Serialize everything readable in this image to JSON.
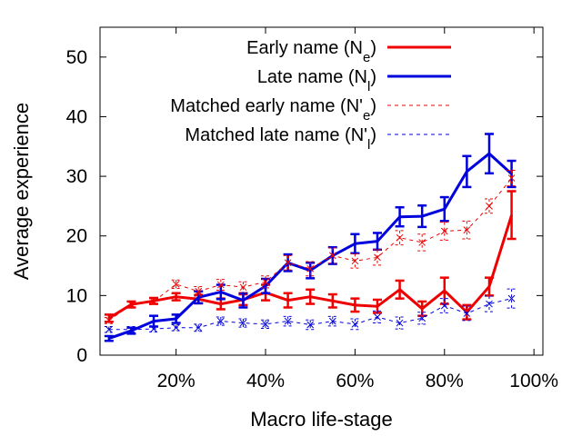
{
  "chart_data": {
    "type": "line",
    "title": "",
    "xlabel": "Macro life-stage",
    "ylabel": "Average experience",
    "xlim": [
      3,
      102
    ],
    "ylim": [
      0,
      55
    ],
    "xticks": [
      {
        "value": 20,
        "label": "20%"
      },
      {
        "value": 40,
        "label": "40%"
      },
      {
        "value": 60,
        "label": "60%"
      },
      {
        "value": 80,
        "label": "80%"
      },
      {
        "value": 100,
        "label": "100%"
      }
    ],
    "yticks": [
      {
        "value": 0,
        "label": "0"
      },
      {
        "value": 10,
        "label": "10"
      },
      {
        "value": 20,
        "label": "20"
      },
      {
        "value": 30,
        "label": "30"
      },
      {
        "value": 40,
        "label": "40"
      },
      {
        "value": 50,
        "label": "50"
      }
    ],
    "grid": false,
    "legend_position": "top-right",
    "x": [
      5,
      10,
      15,
      20,
      25,
      30,
      35,
      40,
      45,
      50,
      55,
      60,
      65,
      70,
      75,
      80,
      85,
      90,
      95
    ],
    "series": [
      {
        "name": "Early name (N_e)",
        "label_main": "Early name (N",
        "label_sub": "e",
        "label_end": ")",
        "color": "#ee0000",
        "style": "solid",
        "marker": "none",
        "values": [
          6.2,
          8.5,
          9.1,
          9.8,
          9.4,
          8.6,
          9.3,
          10.5,
          9.2,
          9.8,
          9.1,
          8.4,
          8.2,
          11.0,
          7.8,
          10.8,
          7.2,
          11.5,
          23.5
        ],
        "errors": [
          0.6,
          0.5,
          0.5,
          0.6,
          0.7,
          0.9,
          0.9,
          1.3,
          1.2,
          1.2,
          1.1,
          1.1,
          1.1,
          1.5,
          1.2,
          2.2,
          1.2,
          1.5,
          4.0
        ]
      },
      {
        "name": "Late name (N_l)",
        "label_main": "Late name (N",
        "label_sub": "l",
        "label_end": ")",
        "color": "#0000dd",
        "style": "solid",
        "marker": "none",
        "values": [
          2.8,
          4.1,
          5.7,
          6.1,
          9.7,
          10.6,
          9.2,
          11.6,
          15.5,
          14.2,
          16.7,
          18.7,
          19.1,
          23.2,
          23.3,
          24.5,
          30.8,
          33.8,
          30.4
        ],
        "errors": [
          0.4,
          0.5,
          0.9,
          0.7,
          1.0,
          1.2,
          1.2,
          1.2,
          1.4,
          1.3,
          1.4,
          1.6,
          1.4,
          1.6,
          1.8,
          2.0,
          2.6,
          3.3,
          2.2
        ]
      },
      {
        "name": "Matched early name (N'_e)",
        "label_main": "Matched early name (N'",
        "label_sub": "e",
        "label_end": ")",
        "color": "#ee0000",
        "style": "dashed",
        "marker": "x",
        "values": [
          5.8,
          8.5,
          9.0,
          11.9,
          10.7,
          11.8,
          11.4,
          12.3,
          15.5,
          14.5,
          16.7,
          15.8,
          16.4,
          19.7,
          18.9,
          20.8,
          21.0,
          25.0,
          29.7
        ],
        "errors": [
          0.5,
          0.5,
          0.5,
          0.7,
          0.8,
          0.9,
          0.9,
          1.0,
          1.2,
          1.2,
          1.3,
          1.2,
          1.3,
          1.2,
          1.4,
          1.5,
          1.5,
          1.2,
          1.3
        ]
      },
      {
        "name": "Matched late name (N'_l)",
        "label_main": "Matched late name (N'",
        "label_sub": "l",
        "label_end": ")",
        "color": "#0000dd",
        "style": "dashed",
        "marker": "x",
        "values": [
          4.3,
          4.3,
          4.4,
          4.6,
          4.6,
          5.7,
          5.4,
          5.2,
          5.7,
          5.1,
          5.7,
          5.2,
          6.4,
          5.4,
          6.2,
          8.3,
          7.0,
          8.6,
          9.5
        ],
        "errors": [
          0.5,
          0.5,
          0.5,
          0.5,
          0.6,
          0.7,
          0.7,
          0.7,
          0.8,
          0.8,
          0.8,
          0.9,
          1.0,
          1.0,
          1.0,
          1.2,
          1.2,
          1.3,
          1.6
        ]
      }
    ]
  }
}
